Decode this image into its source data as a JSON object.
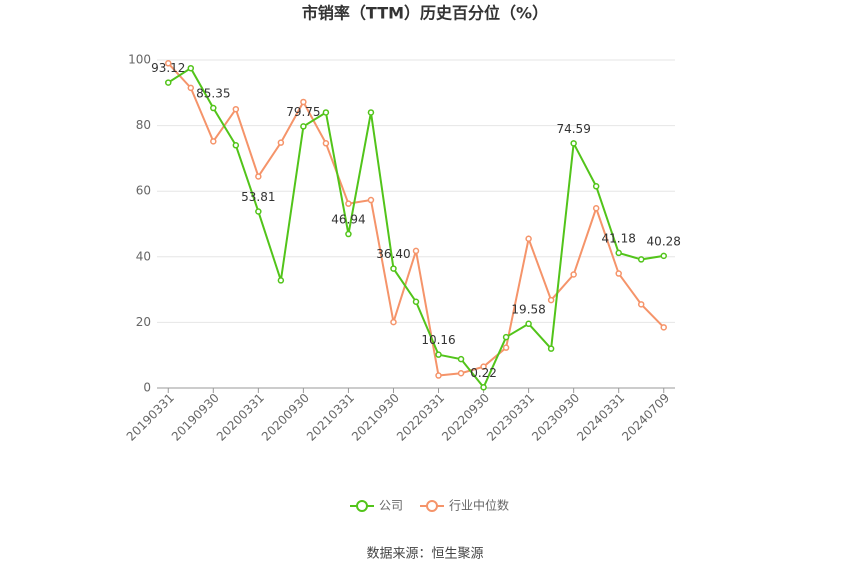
{
  "chart_data": {
    "type": "line",
    "title": "市销率（TTM）历史百分位（%）",
    "categories": [
      "20190331",
      null,
      "20190930",
      null,
      "20200331",
      null,
      "20200930",
      null,
      "20210331",
      null,
      "20210930",
      null,
      "20220331",
      null,
      "20220930",
      null,
      "20230331",
      null,
      "20230930",
      null,
      "20240331",
      null,
      "20240709"
    ],
    "series": [
      {
        "name": "公司",
        "color": "#52c41a",
        "values": [
          93.12,
          97.5,
          85.35,
          74,
          53.81,
          32.8,
          79.75,
          84,
          46.94,
          84,
          36.4,
          26.3,
          10.16,
          8.8,
          0.22,
          15.5,
          19.58,
          12,
          74.59,
          61.5,
          41.18,
          39.2,
          40.28
        ],
        "value_labels": [
          "93.12",
          null,
          "85.35",
          null,
          "53.81",
          null,
          "79.75",
          null,
          "46.94",
          null,
          "36.40",
          null,
          "10.16",
          null,
          "0.22",
          null,
          "19.58",
          null,
          "74.59",
          null,
          "41.18",
          null,
          "40.28"
        ]
      },
      {
        "name": "行业中位数",
        "color": "#f5946a",
        "values": [
          99,
          91.5,
          75.2,
          85,
          64.5,
          74.8,
          87.2,
          74.6,
          56.2,
          57.3,
          20.1,
          41.8,
          3.8,
          4.5,
          6.5,
          12.3,
          45.5,
          26.8,
          34.6,
          54.8,
          34.9,
          25.5,
          18.5
        ]
      }
    ],
    "ylim": [
      0,
      100
    ],
    "yticks": [
      0,
      20,
      40,
      60,
      80,
      100
    ],
    "grid": true,
    "legend": "bottom",
    "source": "数据来源：恒生聚源"
  }
}
